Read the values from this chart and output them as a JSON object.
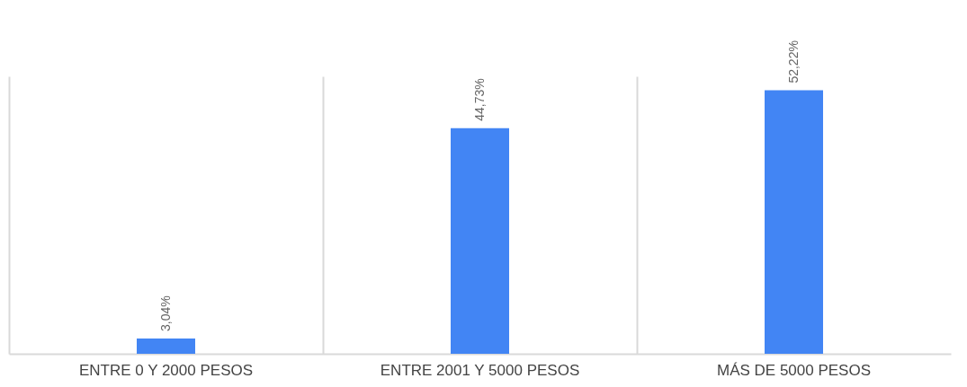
{
  "chart_data": {
    "type": "bar",
    "categories": [
      "ENTRE 0 Y 2000 PESOS",
      "ENTRE 2001 Y 5000 PESOS",
      "MÁS DE 5000 PESOS"
    ],
    "values": [
      3.04,
      44.73,
      52.22
    ],
    "value_labels": [
      "3,04%",
      "44,73%",
      "52,22%"
    ],
    "color": "#4285f4",
    "grid": "x"
  }
}
